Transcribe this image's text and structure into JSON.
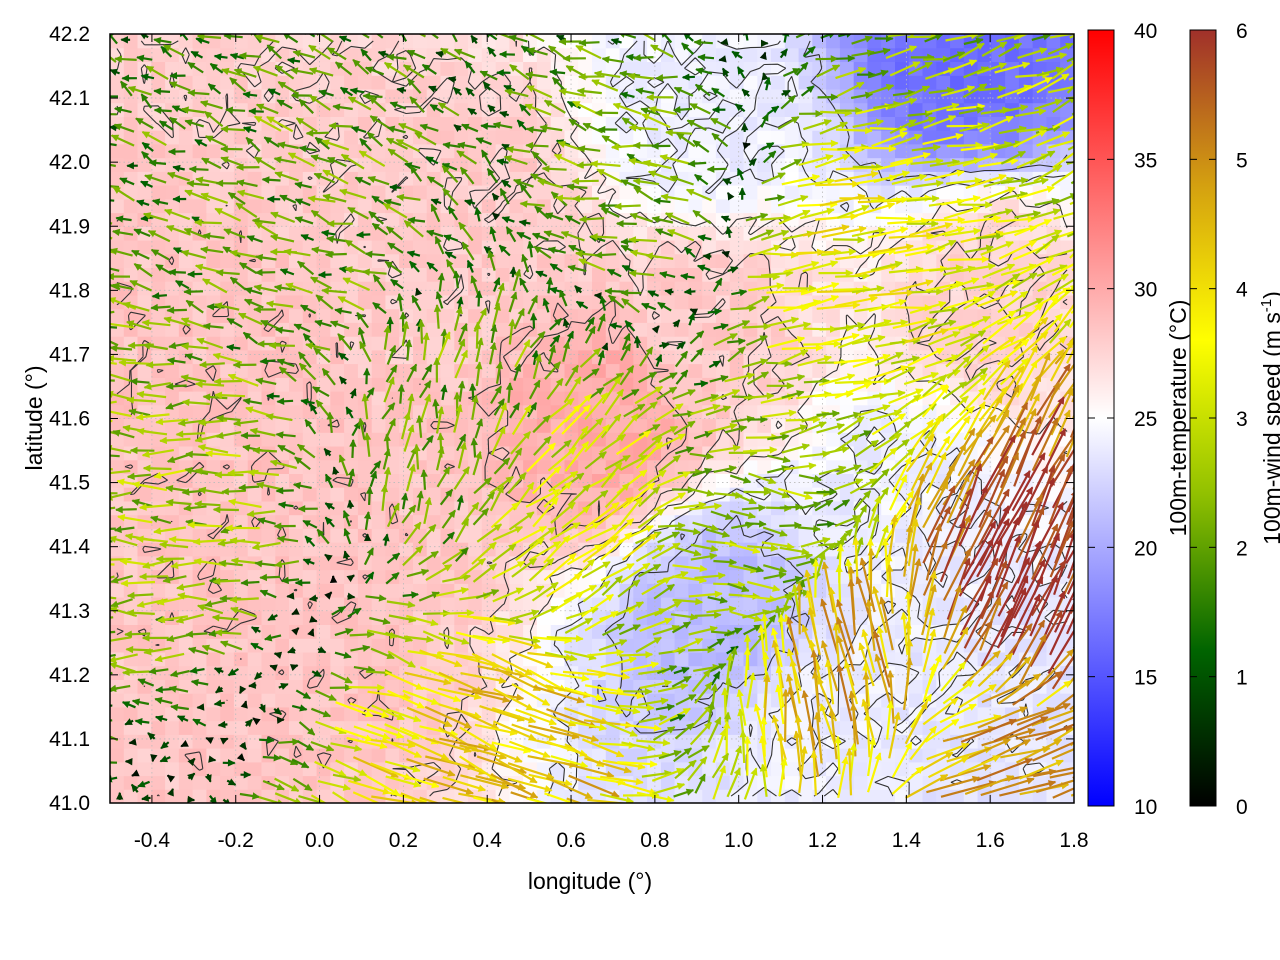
{
  "chart_data": {
    "type": "heatmap",
    "xlabel": "longitude (°)",
    "ylabel": "latitude (°)",
    "xlim": [
      -0.5,
      1.8
    ],
    "ylim": [
      41.0,
      42.2
    ],
    "xticks": [
      "-0.4",
      "-0.2",
      "0.0",
      "0.2",
      "0.4",
      "0.6",
      "0.8",
      "1.0",
      "1.2",
      "1.4",
      "1.6",
      "1.8"
    ],
    "yticks": [
      "41.0",
      "41.1",
      "41.2",
      "41.3",
      "41.4",
      "41.5",
      "41.6",
      "41.7",
      "41.8",
      "41.9",
      "42.0",
      "42.1",
      "42.2"
    ],
    "grid": true,
    "layers": [
      {
        "kind": "filled",
        "variable": "100m-temperature"
      },
      {
        "kind": "contour",
        "color": "#333333"
      },
      {
        "kind": "vectors",
        "variable": "100m-wind speed"
      }
    ],
    "colorbars": [
      {
        "label": "100m-temperature (°C)",
        "range": [
          10,
          40
        ],
        "ticks": [
          "10",
          "15",
          "20",
          "25",
          "30",
          "35",
          "40"
        ],
        "colors": [
          "#0000ff",
          "#ffffff",
          "#ff0000"
        ]
      },
      {
        "label": "100m-wind speed (m s",
        "label_sup": "-1",
        "label_end": ")",
        "range": [
          0,
          6
        ],
        "ticks": [
          "0",
          "1",
          "2",
          "3",
          "4",
          "5",
          "6"
        ],
        "colors": [
          "#000000",
          "#006400",
          "#90c000",
          "#ffff00",
          "#d4a010",
          "#a0302a"
        ]
      }
    ],
    "temperature_field": {
      "note_kind": "approximate regional values",
      "regions": [
        {
          "lon": -0.3,
          "lat": 41.6,
          "value": 28.5
        },
        {
          "lon": 0.0,
          "lat": 41.3,
          "value": 28.5
        },
        {
          "lon": 0.4,
          "lat": 41.9,
          "value": 28.0
        },
        {
          "lon": 0.7,
          "lat": 41.6,
          "value": 30.0
        },
        {
          "lon": 0.9,
          "lat": 41.75,
          "value": 28.0
        },
        {
          "lon": 1.6,
          "lat": 41.8,
          "value": 27.5
        },
        {
          "lon": 0.9,
          "lat": 42.05,
          "value": 24.0
        },
        {
          "lon": 1.55,
          "lat": 42.17,
          "value": 16.5
        },
        {
          "lon": 0.95,
          "lat": 41.3,
          "value": 21.0
        },
        {
          "lon": 1.4,
          "lat": 41.45,
          "value": 24.0
        },
        {
          "lon": 1.6,
          "lat": 41.1,
          "value": 23.5
        },
        {
          "lon": 1.2,
          "lat": 41.1,
          "value": 24.0
        }
      ]
    },
    "wind_field": {
      "note_kind": "approximate regional vectors (u, v in m/s)",
      "regions": [
        {
          "lon": -0.3,
          "lat": 41.5,
          "u": -2.5,
          "v": 0.0
        },
        {
          "lon": 0.0,
          "lat": 41.85,
          "u": -1.8,
          "v": 0.6
        },
        {
          "lon": 0.3,
          "lat": 41.6,
          "u": 0.5,
          "v": 2.0
        },
        {
          "lon": 0.6,
          "lat": 41.45,
          "u": 2.5,
          "v": 2.0
        },
        {
          "lon": 0.8,
          "lat": 41.95,
          "u": -2.0,
          "v": 0.5
        },
        {
          "lon": 1.2,
          "lat": 41.85,
          "u": 3.5,
          "v": 0.5
        },
        {
          "lon": 1.0,
          "lat": 41.4,
          "u": 2.5,
          "v": -0.3
        },
        {
          "lon": 1.25,
          "lat": 41.2,
          "u": -1.0,
          "v": 4.5
        },
        {
          "lon": 1.65,
          "lat": 41.3,
          "u": 2.5,
          "v": 5.5
        },
        {
          "lon": 1.6,
          "lat": 41.05,
          "u": 4.5,
          "v": 1.5
        },
        {
          "lon": 0.4,
          "lat": 41.1,
          "u": 4.0,
          "v": -1.5
        }
      ]
    }
  }
}
